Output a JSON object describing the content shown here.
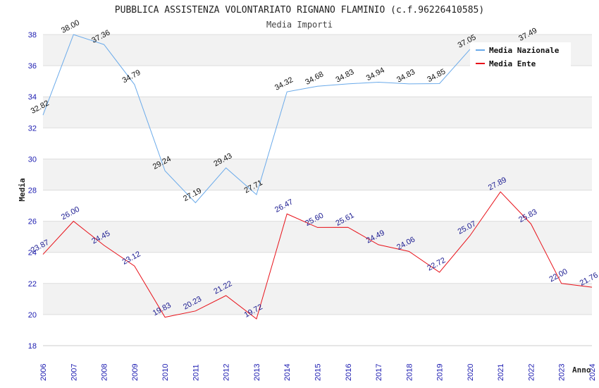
{
  "chart_data": {
    "type": "line",
    "title": "PUBBLICA ASSISTENZA VOLONTARIATO RIGNANO FLAMINIO (c.f.96226410585)",
    "subtitle": "Media Importi",
    "xlabel": "Anno",
    "ylabel": "Media",
    "ylim": [
      18,
      38
    ],
    "yticks": [
      "18",
      "20",
      "22",
      "24",
      "26",
      "28",
      "30",
      "32",
      "34",
      "36",
      "38"
    ],
    "x": [
      "2006",
      "2007",
      "2008",
      "2009",
      "2010",
      "2011",
      "2012",
      "2013",
      "2014",
      "2015",
      "2016",
      "2017",
      "2018",
      "2019",
      "2020",
      "2021",
      "2022",
      "2023",
      "2024"
    ],
    "grid": true,
    "legend_position": "top-right",
    "series": [
      {
        "name": "Media Nazionale",
        "color": "#6aaaea",
        "values": [
          32.82,
          38.0,
          37.36,
          34.79,
          29.24,
          27.19,
          29.43,
          27.71,
          34.32,
          34.68,
          34.83,
          34.94,
          34.83,
          34.85,
          37.05,
          null,
          37.49,
          null,
          null
        ],
        "labels": [
          "32.82",
          "38.00",
          "37.36",
          "34.79",
          "29.24",
          "27.19",
          "29.43",
          "27.71",
          "34.32",
          "34.68",
          "34.83",
          "34.94",
          "34.83",
          "34.85",
          "37.05",
          "",
          "37.49",
          "",
          ""
        ]
      },
      {
        "name": "Media Ente",
        "color": "#e8121a",
        "values": [
          23.87,
          26.0,
          24.45,
          23.12,
          19.83,
          20.23,
          21.22,
          19.72,
          26.47,
          25.6,
          25.61,
          24.49,
          24.06,
          22.72,
          25.07,
          27.89,
          25.83,
          22.0,
          21.76
        ],
        "labels": [
          "23.87",
          "26.00",
          "24.45",
          "23.12",
          "19.83",
          "20.23",
          "21.22",
          "19.72",
          "26.47",
          "25.60",
          "25.61",
          "24.49",
          "24.06",
          "22.72",
          "25.07",
          "27.89",
          "25.83",
          "22.00",
          "21.76"
        ]
      }
    ]
  }
}
